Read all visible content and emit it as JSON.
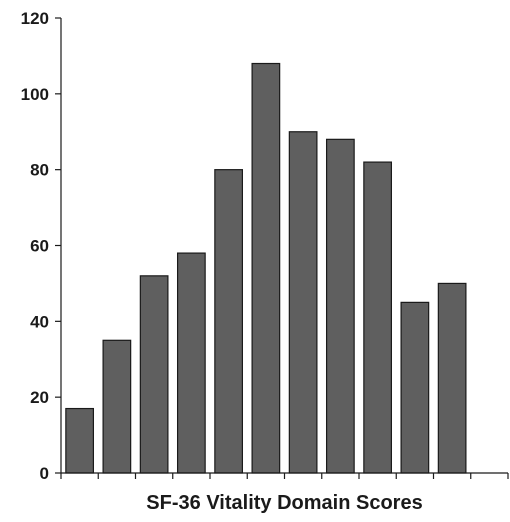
{
  "chart_data": {
    "type": "bar",
    "title": "",
    "xlabel": "SF-36 Vitality Domain Scores",
    "ylabel": "",
    "categories": [
      "",
      "",
      "",
      "",
      "",
      "",
      "",
      "",
      "",
      "",
      "",
      ""
    ],
    "values": [
      17,
      35,
      52,
      58,
      80,
      108,
      90,
      88,
      82,
      45,
      50,
      0
    ],
    "ylim": [
      0,
      120
    ],
    "yticks": [
      "0",
      "20",
      "40",
      "60",
      "80",
      "100",
      "120"
    ],
    "grid": false,
    "legend": "none",
    "colors": {
      "bar_fill": "#5f5f5f",
      "bar_stroke": "#1a1a1a",
      "axis": "#1a1a1a"
    }
  }
}
